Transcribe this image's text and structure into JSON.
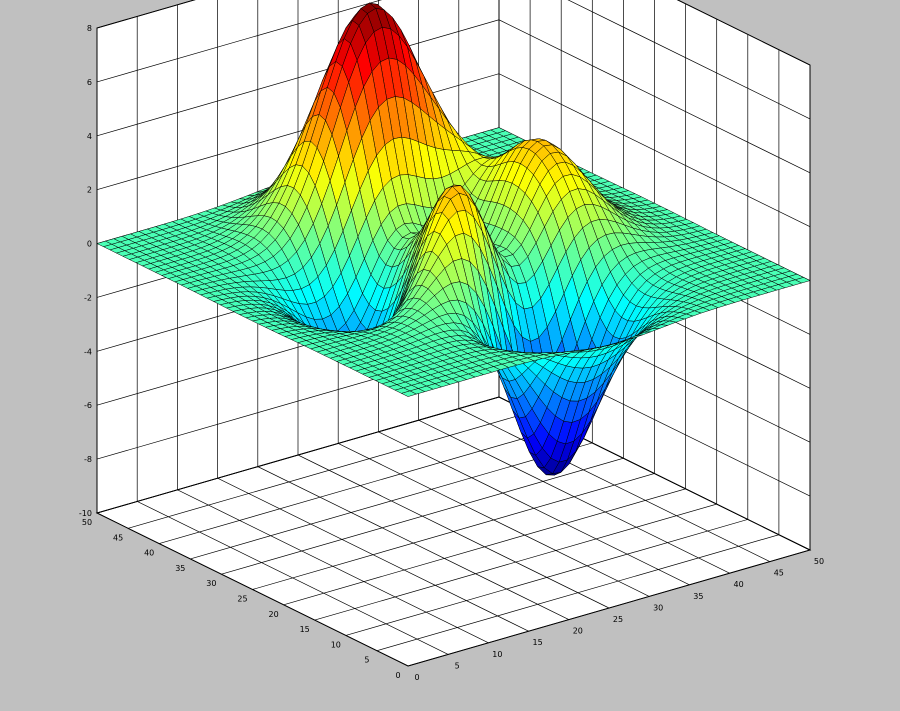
{
  "chart_data": {
    "type": "surface",
    "title": "",
    "xlabel": "",
    "ylabel": "",
    "zlabel": "",
    "grid": true,
    "colormap": "jet",
    "background": "#c0c0c0",
    "axes_color": "#ffffff",
    "xlim": [
      0,
      50
    ],
    "ylim": [
      0,
      50
    ],
    "zlim": [
      -10,
      8
    ],
    "x_ticks": [
      0,
      5,
      10,
      15,
      20,
      25,
      30,
      35,
      40,
      45,
      50
    ],
    "y_ticks": [
      0,
      5,
      10,
      15,
      20,
      25,
      30,
      35,
      40,
      45,
      50
    ],
    "z_ticks": [
      -10,
      -8,
      -6,
      -4,
      -2,
      0,
      2,
      4,
      6,
      8
    ],
    "x_tick_labels": [
      "0",
      "5",
      "10",
      "15",
      "20",
      "25",
      "30",
      "35",
      "40",
      "45",
      "50"
    ],
    "y_tick_labels": [
      "0",
      "5",
      "10",
      "15",
      "20",
      "25",
      "30",
      "35",
      "40",
      "45",
      "50"
    ],
    "z_tick_labels": [
      "-10",
      "-8",
      "-6",
      "-4",
      "-2",
      "0",
      "2",
      "4",
      "6",
      "8"
    ],
    "mesh_size": 49,
    "surface": "peaks",
    "z_min": -6.55,
    "z_max": 8.1
  }
}
